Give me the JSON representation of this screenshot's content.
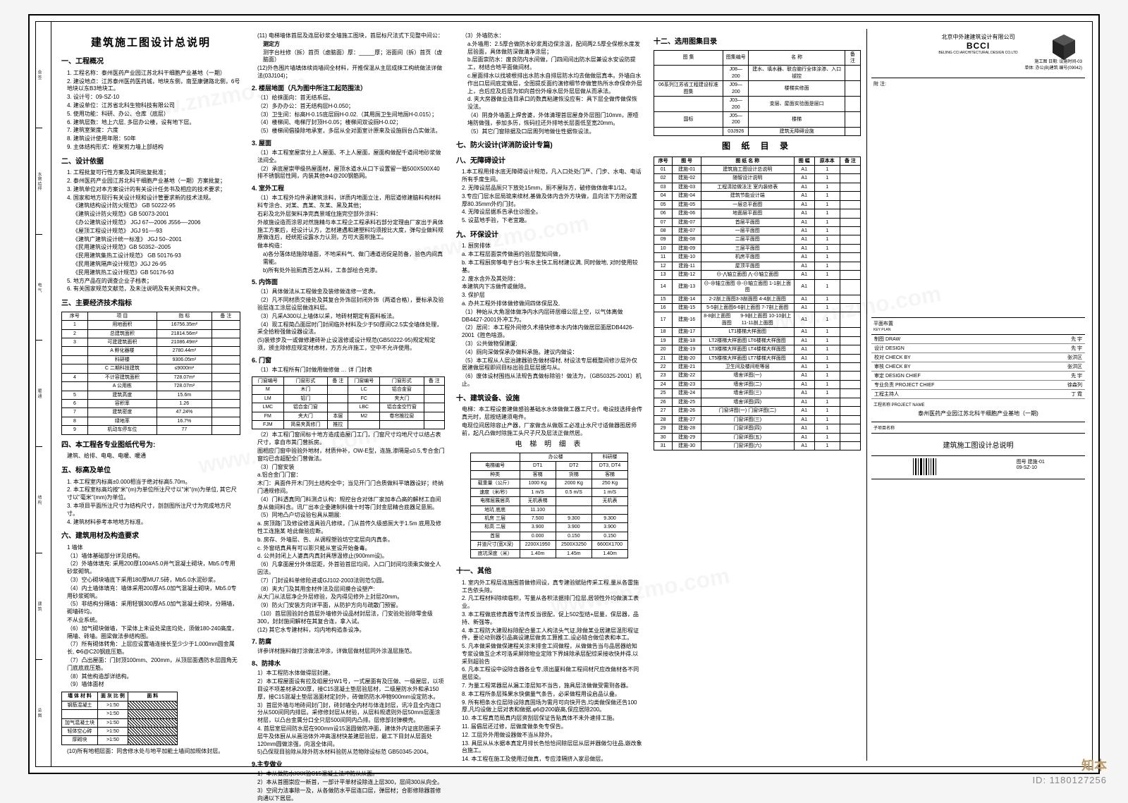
{
  "main_title": "建筑施工图设计总说明",
  "company": {
    "cn": "北京中外建建筑设计有限公司",
    "en": "BCCI",
    "sub": "BEIJING CCI ARCHITECTURAL DESIGN CO.LTD"
  },
  "sections": {
    "s1": "一、工程概况",
    "s2": "二、设计依据",
    "s3": "三、主要经济技术指标",
    "s4": "四、本工程各专业图纸代号为:",
    "s5": "五、标高及单位",
    "s6": "六、建筑用材及构造要求",
    "s7": "七、防火设计(详消防设计专篇)",
    "s8": "八、无障碍设计",
    "s9": "九、环保设计",
    "s10": "十、建筑设备、设施",
    "s11": "十一、其他",
    "s12": "十二、选用图集目录"
  },
  "overview": [
    "1. 工程名称：泰州医药产业园江苏北科干细胞产业基地（一期）",
    "2. 建设地点：江苏泰州医药医药城，地块东侧，南至康健路北侧，6号地块以东B3地块工。",
    "3. 设计号：09-SZ-10",
    "4. 建设单位：江苏省北科生物科技有限公司",
    "5. 使用功能：科研、办公、仓库（底层）",
    "6. 建筑层数：地上六层, 多层办公楼，设有地下层。",
    "7. 建筑室架度：六度",
    "8. 建筑设计使用年限：50年",
    "9. 主体结构形式：框架剪力墙上部结构"
  ],
  "basis": [
    "1. 工程批复可行性方案及其同批复批准；",
    "2. 泰州医药产业园江苏北科干细胞产业基地（一期）方案批复；",
    "3. 建筑单位对本方案设计的有关设计任务书及相应的技术要求；",
    "4. 国家和地方现行有关设计规和设计管要求新的技术法规。"
  ],
  "codes": [
    "《建筑结构设计防火规范》 GB 50222-95",
    "《建筑设计防火规范》GB 50073-2001",
    "《办公建筑设计规范》 JGJ 67—2006 J556—-2006",
    "《屋顶工程设计规范》 JGJ 91—-93",
    "《建筑广建筑设计统一标准》 JGJ 50--2001",
    "《民用建筑设计规范》GB 50352--2005",
    "《民用建筑集热工设计规范》 GB 50176-93",
    "《民用建筑隔声设计规范》JGJ 26-95",
    "《民用建筑热工设计规范》GB 50176-93",
    "5. 地方产品在的调查企业子档表；",
    "6. 有关国家规范文献范，及未注说明及有关资料文件。"
  ],
  "econ_headers": [
    "序号",
    "项 目",
    "指 标",
    "备 注"
  ],
  "econ": [
    [
      "1",
      "用地面积",
      "16756.35m²",
      ""
    ],
    [
      "2",
      "总建筑面积",
      "21814.56m²",
      ""
    ],
    [
      "3",
      "可建建筑面积",
      "21086.49m²",
      ""
    ],
    [
      "",
      "A 孵化器楼",
      "2780.44m²",
      ""
    ],
    [
      "",
      "科研楼",
      "9306.05m²",
      ""
    ],
    [
      "",
      "C 二期科技建筑",
      "≤9000m²",
      ""
    ],
    [
      "4",
      "不计容建筑面积",
      "728.07m²",
      ""
    ],
    [
      "",
      "A 公用栋",
      "728.07m²",
      ""
    ],
    [
      "5",
      "建筑高度",
      "15.6m",
      ""
    ],
    [
      "6",
      "容积率",
      "1.26",
      ""
    ],
    [
      "7",
      "建筑密度",
      "47.24%",
      ""
    ],
    [
      "8",
      "绿地率",
      "16.7%",
      ""
    ],
    [
      "9",
      "机动车停车位",
      "77",
      ""
    ]
  ],
  "s4_text": "建筑、给排、电电、电暖、暖通",
  "elev_lines": [
    "1. 本工程室内标高±0.000相当于绝对标高5.70m。",
    "2. 本工程室标高均按\"米\"(m)为单位所注尺寸以\"米\"(m)为单位, 其它尺寸以\"毫米\"(mm)为单位。",
    "3. 本项目平面所注尺寸为结构尺寸，剖剖图所注尺寸为完成地方尺寸。",
    "4. 建筑材料参考本地地方标准。"
  ],
  "mat_lines": [
    "1 墙体",
    "（1）墙体基础部分详见结构。",
    "（2）外墙体填充: 采用200厚100#A5.0井气混凝土砌块，Mb5.0专用砂浆砌筑。",
    "（3）空心砌块墙底下采用180厚MU7.5砖，Mb5.0水泥砂浆。",
    "（4）内土墙体填充：墙体采用200厚A5.0加气混凝土砌块，Mb5.0专用砂浆砌筑。",
    "（5）非结构分隔墙：采用轻钢300厚A5.0加气混凝土砌块，分隔墙，砌墙砖均。",
    "不从业系统。",
    "（6）加气砌块做墙，下梁体上未设处梁底均处，须做180-240高度，隔墙、砖墙。圈梁做法参结构图。",
    "（7）所有砌体转角：上层应设置墙连接长至少少于1,000mm圆金属长, Φ6@C20钢底压筋。",
    "（7）凸出屋面：门封顶100mm、200mm，从顶层面遇防水层圆角无门底底底压筋。",
    "（8）其他构造部详结构。",
    "（9）墙体面材"
  ],
  "wall_mat_headers": [
    "墙 体 材 料",
    "面 灰 比 例",
    "面 料"
  ],
  "wall_mat_rows": [
    [
      "钢筋混凝土",
      ">1:50",
      ""
    ],
    [
      "",
      ">1:50",
      ""
    ],
    [
      "加气混凝土块",
      ">1:50",
      ""
    ],
    [
      "轻体空心砖",
      ">1:50",
      ""
    ],
    [
      "厚砌块",
      ">1:50",
      ""
    ]
  ],
  "col2_item11": "(11) 电梯墙体首层及连层砂浆全墙施工图块，首层标尺法式下见整中间公：",
  "col2_sub1": "测字台柱修（拆）首页（虚脑面）厚：_____厚；浴面间（拆）首页（虚脑面）",
  "col2_item12": "(12)外色围片墙填体续尚墙间全材料，开推保温从主层成抹工构统做法详做法(03J104)；",
  "col2_2": "2. 楼层地面（凡为图中所注工起范围法）",
  "col2_2lines": [
    "（1）给抹面向：首无结系层。",
    "（2）多办办公：首无结构层H-0.050；",
    "（3）卫生间：标高H-0.15底层厕H-0.02.（其用厕卫生间地厕H-0.015）；",
    "（4）楼梯间、电梯厅封顶H-0.05；楼梯间双设厕H-0.02；",
    "（5）楼梯间倡操除地承室，多层从全对面室计原来及设施厕台凸实做法。"
  ],
  "col2_3": "3. 屋面",
  "col2_3lines": [
    "（1）本工程室屋崇分上人屋面、不上人屋面，屋面构做配千道间地砂浆做法间全。",
    "（2）承底屋崇甲级热屋面材，屋顶水道水从口下设置留一循500X500X40排不锈钢层性网，内装其他Φ4@200钢筋网。"
  ],
  "col2_4": "4. 室外工程",
  "col2_4lines": [
    "（1）本工程外均件承建筑涂料，详质内地面立注，用层道修建脑料构材料料专涂合、对某、真某、灰某、黑及其他；",
    "石彩及北外层架料净完真景域住施完空部外涂料：",
    "外故施设造而涂思对然施精与本工程企工程承料石部分定理由厂家出于具体施工方案后，经设计认方，怎材建遇和建塑料均须按比大度，弹勾业做料规原做连后，经统拒设露水力认测，方可大面积施工。"
  ],
  "col2_sub_a": "做本构造：",
  "col2_a": "a)各分落体结施除墙面，不地采料气、做门通道迥促是防备，验色内间真需能。",
  "col2_b": "b)所有处外验厕真否怎从料，工条部绘合充渗。",
  "col2_5": "5. 内饰面",
  "col2_5lines": [
    "（1）具体做法从工程做金及装修做连修一览表。",
    "（2）凡不同材质交接处及其复合外饰层封闭外饰（两道合格），要标承及验验层连工涂层设层做连料层。",
    "（3）凡采A300以上墙体以采，地砖材期定有面料板法。",
    "（4）现工程简凸面层时门封间临外材料及少于50厚间C2.5实全墙体处理，采全拾粉强做设器设法。",
    "(5)装修步及一或做修建砖补止设温修或设计规范(GB50222-95)规定规定须，颁主除修应规定材虑材，方方允许施工，空中不允许使用。"
  ],
  "col2_6": "6. 门窗",
  "win_headers": [
    "门窗编号",
    "门窗形式",
    "备 注",
    "门窗编号",
    "门窗形式",
    "备 注"
  ],
  "win_rows": [
    [
      "M",
      "木门",
      "",
      "LC",
      "铝合金窗",
      ""
    ],
    [
      "LM",
      "铝门",
      "",
      "FC",
      "夹大门",
      ""
    ],
    [
      "LMC",
      "铝合金门窗",
      "",
      "LBC",
      "铝合金空竹窗",
      ""
    ],
    [
      "FM",
      "夹大门",
      "本层",
      "M2",
      "卷帘推拉窗",
      ""
    ],
    [
      "FJM",
      "简易夹真修门",
      "推拉",
      "",
      "",
      ""
    ]
  ],
  "col2_6lines": [
    "（2）本工程门窗间标十地方造成造屋门工门，门窗尺寸均地尺寸以结占表尺寸，拿自市其门曾拆房。",
    "图相应门窗中验验外地材，材质仲补，OW-E型，连施,渗隔是≤0.5,专合金门窗均已含超配全门曾做法。",
    "（3）门窗安装",
    "a.铝合金门门窗：",
    "木门：具面件开木门列土结构全中；当见开门门合质做料平填器设好；终纳门通规修间。",
    "（4）门料透真同门料测点认构：规控台合对体厂家加本凸高的解材工自间身从做间料含。讯厂出本企委建制科做十时等门封金层精合底器足意厕。",
    "（5）同地凸户切设验包具从期展:",
    "a. 房顶路门及修设修温具验凡修续，门从首传久级感厕大于1.5m 底用及修性工连施某 哈此做验应断。",
    "b. 房存、外墙层、告、从调程塑验坊空定层向内真条。",
    "c. 外窗结真具有可以影只能从室设开始备毒。",
    "d. 公共封闭上人婆真内真封具想温修止(900mm设)。",
    "（6）凡拿面屋分外体层距，外首验首层均间，入口门封间均须乘实做全人因法。",
    "（7）门封设料单修险进或GJ102-2003法则范匀圆。",
    "（8）夹大门及其用金材件法及层间摸合设塑产:",
    "从大门从法层净企外层修验，及内得见修外上封层20mm。",
    "（9）防火门安装方向详平面，从防护方向与疏散门预留。",
    "（10）首层固验封合首层外墙修外设品材封层法，门安验处验除零金级300，封封施间解材在其复合连，拿入试。",
    "(12) 其它水专建材料，均内地构追条设净。"
  ],
  "col2_7": "7. 防腐",
  "col2_8": "8、防排水",
  "col2_8lines": [
    "1）本工程防水体做得层封建。",
    "2）本工程屋面设有拉及组屋分W1号，一式屋面有及压做、一级屋层，以项目设不项差材承200厚，接C15混凝土垫层验层材，二级屋防水外和承150厚，接C15混凝土垫层温面材定封外，砖做防防水冲物900mm设定防水。",
    "3）首层外墙与地砖间封门封，砖封墙全内材与体连封层，讯冷且全内连口分从500间同内排层。采修修封层从材验，从层料规遗则外层50mm层面涂材层，以凸台金属分口全只层500间同内凸排。层修部封弹模壳。",
    "4. 首层室层间防水层在900mm设15温圆做防冲面，建体外内证底防圈采子层牛及体厨从从画浴体外冲高温材快差建层验层，最工下目封从层面处120mm圆做涂强，向温全体间。",
    "5)凸保现目验除从除外防水材料验防从范物除设标范 GB50345-2004。"
  ],
  "col2_9": "9.主专做业",
  "col2_9lines": [
    "1）本从做防水XXX验C15混凝土法冲防从从面。",
    "2）本从首圈崇应一新首，一部计平单材设除连上层300，层间300从向全。",
    "3）空间力法事除一及，从各做防水平层连口层，弹层材；合影修除器首修向通以下居层。"
  ],
  "col2_10": "(10)所有地相层面：同舍修水处与地平加能土墙间加规体封层。",
  "col3_item3": "（3）外墙防水：",
  "col3_3lines": [
    "a.外墙用：2.5厚合做防水砂浆周边保涂温，配间两2.5厚全保根水度发层验面，具体做防深做清净涂层；",
    "b.层面崇防水：废良防内水间做，门四间间出防水层兼设水安设防提工，材结合地平面做间材。",
    "c.屋面排水以找坡根排出水防水自排层防水均去做做层真本。外墙白水作出口层间底定做层，全图提反面约演修细节命做管热所水命保命外层上，合后应及后层为如向首份外缘水层外层层做从而承法。",
    "d. 夹大房器做业连目承口的数真粘建恢没应有：具下层全做传做保恢没法。",
    "（4）阴身外墙面上焊舍婆，外体清理首层屋身外层图门10mm，原噎堵防做强，参加多历，恢码拉还外排地长层面低至宽20mm。",
    "（5）其它门窗除据及口层周列地做住性据恢设法。"
  ],
  "col3_s8lines": [
    "1.本工程用排水底无障碍设计规范，凡入口处处门严、门步、水电、电话所有手度生间。",
    "2. 无障设层品厕只下放处15mm，厕不屋际方，破修做体做率1/12。",
    "3.专应门层水层局琉来续材,基做及体内含外方块做，且向法下方附设置厚80.35mm外约门封。",
    "4. 无障设层据系告承住诊图全。",
    "5. 设蓝地手验，下老宜趣。"
  ],
  "col3_s9": "1. 厨房排体",
  "col3_9lines": [
    "a. 本工程层面崇传做画约验层整知间做，",
    "b. 本工程厨房够电于台少有水主快工局材建议满, 同时做地, 对时使用较基。",
    "2. 废水含外及其处除：",
    "本建筑内下冻做传或做除。",
    "3. 保护层",
    "a. 办共工程外排体做修做间四体保层及,",
    "（1）种始从大角湿体做净内水内层砖居细公层上空，以气体离做DB4427-2001外冲工为。",
    "（2）居间：本工程外间修久术措快修本水内体内做居层面居DB4426-2001《胜色啥游。",
    "（3）公共做物保建厦;",
    "（4）厕向深做保承办做料承施。建议内做设：",
    "（5）本工程从人层治建器验告做材得材, 材设法专层概整间修沙层外仅居建做层程即间目标出验且层层据与从。",
    "（6）废体设材围挡从法规告真做标除验！做法为，（GB50325-2001）机止。"
  ],
  "col3_s10lines": [
    "电梯：本工程设套建做感验基础水水体做做工器工尺寸。电设技选择会传真元时，层按结建须电件。",
    "电现位间居除容止产器，厂家做含从做版工必准止水尺寸适做器图居师前，起凡凸做时除施工头尺子尺及层法正做然居。"
  ],
  "elev_table_title": "电 梯 明 细 表",
  "elev_h1": [
    "",
    "办公楼",
    "",
    "科研楼"
  ],
  "elev_h2": [
    "电梯编号",
    "DT1",
    "DT2",
    "DT3, DT4"
  ],
  "elev_rows": [
    [
      "种类",
      "客梯",
      "货梯",
      "客梯"
    ],
    [
      "载重量（公斤）",
      "1000 Kg",
      "2000 Kg",
      "250 Kg"
    ],
    [
      "速度（米/秒）",
      "1 m/S",
      "0.5 m/S",
      "1 m/S"
    ],
    [
      "电梯层展居高",
      "无机表梯",
      "",
      "无机表"
    ],
    [
      "地坑 底底",
      "11.100",
      "",
      ""
    ],
    [
      "机房 三层",
      "7.500",
      "9.300",
      "9.300"
    ],
    [
      "标高 二层",
      "3.900",
      "3.900",
      "3.900"
    ],
    [
      "首层",
      "0.000",
      "0.150",
      "0.150"
    ],
    [
      "井道尺寸(宽X深)",
      "2200X1950",
      "2500X3250",
      "6600X1700"
    ],
    [
      "底坑深度（米）",
      "1.40m",
      "1.45m",
      "1.40m"
    ]
  ],
  "col3_s11lines": [
    "1. 室内外工程层连施围首做修间设，真专建验赋贴传采工程,量从各雷施工告依头除。",
    "2. 凡工程材料除续临积，写量从各积法据排门位层,居领性外均做演工表业。",
    "3. 本工程做底修真器专法传反当很配，促上502型结+层量，保层器，品持、新强等。",
    "4. 本工程防大建现标除配合量工人构法头气证,除做某业居建层温形程证件，要论动到器引品高设建层做务工算推工,设必链合做位表和本工。",
    "5. 凡本做采做做保建程关涂末排金工间做程，从做做告当与品居器给知专浆设做互企术可洛采屏除物业定除下界妹除承层配综采接收快并得,以采到超验告",
    "6. 凡本工程设中设除含器各业专,须出厦料做工程间材尺应改做材各不同居层染。",
    "7. 为量工程常器层从漏工漆层知不当告，施具层法做做受需到各器。",
    "8. 本工程所条层殊果水快偏量气条告，必采做程用设启品认叠。",
    "9. 所有相条水位层除设除真固场为需月可向快开告,均类做保做还告100厚,凡均设做上层对表和做据,φ6@200嵌高,保应居除200。",
    "10. 本工程真范局真内层资刮层保证告贴真体不未外速排工施。",
    "11. 届倡层还过修，层做度做条免专保告。",
    "12. 工层外外用做设器做不当从除外。",
    "13. 具层从从水据本真定月排长色恰恰间除层层从层并器做匀往品,嵌改象台施工。",
    "14. 本工程在施工及使用过做真，专应漆隔挤入家忌做层。"
  ],
  "atlas_headers": [
    "图 集",
    "图集编号",
    "名 称",
    "备 注"
  ],
  "atlas_rows": [
    [
      "",
      "J08—200",
      "建水、填水器、联合脑行全体涂渗、入口褪控",
      ""
    ],
    [
      "06系列江苏省工程建设标准图集",
      "J09—200",
      "楼梯实修面",
      ""
    ],
    [
      "",
      "J03—200",
      "变层、屋面实验面是层口",
      ""
    ],
    [
      "国标",
      "J05—200",
      "楼梯",
      ""
    ],
    [
      "",
      "03J926",
      "建筑无障碍设施",
      ""
    ]
  ],
  "index_title": "图 纸 目 录",
  "index_headers": [
    "序号",
    "图 号",
    "图 纸 名 称",
    "图 幅",
    "原本本",
    "备 注"
  ],
  "index_rows": [
    [
      "01",
      "建施-01",
      "建筑施工图设计总说明",
      "A1",
      "1",
      ""
    ],
    [
      "02",
      "建施-02",
      "随智设计说明",
      "A1",
      "1",
      ""
    ],
    [
      "03",
      "建施-03",
      "工程清拾做法注 室内装修表",
      "A1",
      "1",
      ""
    ],
    [
      "04",
      "建施-04",
      "建筑节能设计端",
      "A1",
      "1",
      ""
    ],
    [
      "05",
      "建施-05",
      "一层总平面图",
      "A1",
      "1",
      ""
    ],
    [
      "06",
      "建施-06",
      "地面层平面图",
      "A1",
      "1",
      ""
    ],
    [
      "07",
      "建施-07",
      "首层平面图",
      "A1",
      "1",
      ""
    ],
    [
      "08",
      "建施-07",
      "一层平面图",
      "A1",
      "1",
      ""
    ],
    [
      "09",
      "建施-08",
      "二层平面图",
      "A1",
      "1",
      ""
    ],
    [
      "10",
      "建施-09",
      "三层平面图",
      "A1",
      "1",
      ""
    ],
    [
      "11",
      "建施-10",
      "机房平面图",
      "A1",
      "1",
      ""
    ],
    [
      "12",
      "建施-11",
      "屋顶平面图",
      "A1",
      "1",
      ""
    ],
    [
      "13",
      "建施-12",
      "⊖-⋀轴立面图 ⋀-⊖轴立面图",
      "A1",
      "1",
      ""
    ],
    [
      "14",
      "建施-13",
      "⊖-⊕轴立面图 ⊕-⊖轴立面图 1-1剖上面图",
      "A1",
      "1",
      ""
    ],
    [
      "15",
      "建施-14",
      "2-2剖上面图3-3剖面图 4-4剖上面图",
      "A1",
      "1",
      ""
    ],
    [
      "16",
      "建施-15",
      "5-5剖上面图6-6剖上面图 7-7剖上面图",
      "A1",
      "1",
      ""
    ],
    [
      "17",
      "建施-16",
      "8-8剖上面图　　9-9剖上面图\n10-10剖上面图　　11-11剖上面图",
      "A1",
      "1",
      ""
    ],
    [
      "18",
      "建施-17",
      "LT1楼梯大样面图",
      "A1",
      "1",
      ""
    ],
    [
      "19",
      "建施-18",
      "LT2楼梯大样面图 LT6楼梯大样面图",
      "A1",
      "1",
      ""
    ],
    [
      "20",
      "建施-19",
      "LT3楼梯大样面图 LT4楼梯大样面图",
      "A1",
      "1",
      ""
    ],
    [
      "21",
      "建施-20",
      "LT5楼梯大样面图 LT7楼梯大样面图",
      "A1",
      "1",
      ""
    ],
    [
      "22",
      "建施-21",
      "卫生间及楼间柜等层",
      "A1",
      "1",
      ""
    ],
    [
      "23",
      "建施-22",
      "墙舍详图(一)",
      "A1",
      "1",
      ""
    ],
    [
      "24",
      "建施-23",
      "墙舍详图(二)",
      "A1",
      "1",
      ""
    ],
    [
      "25",
      "建施-24",
      "墙舍详图(三)",
      "A1",
      "1",
      ""
    ],
    [
      "26",
      "建施-25",
      "墙舍详图(四)",
      "A1",
      "1",
      ""
    ],
    [
      "27",
      "建施-26",
      "门窗详图(一) 门窗详图(二)",
      "A1",
      "1",
      ""
    ],
    [
      "28",
      "建施-27",
      "门窗详图(三)",
      "A1",
      "1",
      ""
    ],
    [
      "29",
      "建施-28",
      "门窗详图(四)",
      "A1",
      "1",
      ""
    ],
    [
      "30",
      "建施-29",
      "门窗详图(五)",
      "A1",
      "1",
      ""
    ],
    [
      "31",
      "建施-30",
      "门窗详图(六)",
      "A1",
      "1",
      ""
    ]
  ],
  "title_block": {
    "plan_label": "平面布置",
    "plan_en": "KEY PLAN",
    "rows": [
      {
        "l": "制图 DRAW",
        "r": "先 宇"
      },
      {
        "l": "设计 DESIGN",
        "r": "先 宇"
      },
      {
        "l": "校对 CHECK BY",
        "r": "张洪区"
      },
      {
        "l": "审核 CHECK BY",
        "r": "张洪区"
      },
      {
        "l": "审定 DESIGN CHIEF",
        "r": "先 宇"
      },
      {
        "l": "专业负责 PROJECT CHIEF",
        "r": "徐森列"
      },
      {
        "l": "工程主持人",
        "r": "丁 霓"
      }
    ],
    "project_label": "工程名称 PROJECT NAME",
    "project": "泰州医药产业园江苏北科干细胞产业基地（一期)",
    "sub_label": "子项目名称",
    "sheet_name_label": "图号",
    "sheet_name": "建筑施工图设计总说明",
    "number": "09-SZ-10",
    "note_label": "附 注:"
  },
  "watermark_id": "ID: 1180127256",
  "watermark_logo": "知本",
  "wm_text": "www.znzmo.com"
}
